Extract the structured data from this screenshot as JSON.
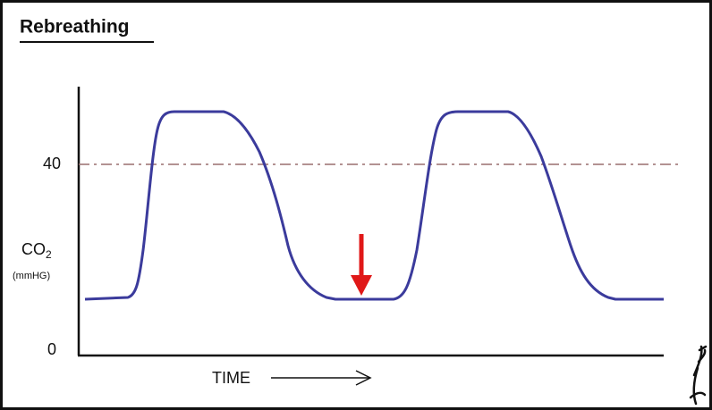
{
  "title": "Rebreathing",
  "y_axis": {
    "ticks": [
      "40",
      "0"
    ],
    "label": {
      "text": "CO",
      "subscript": "2"
    },
    "unit": "(mmHG)"
  },
  "x_axis": {
    "label": "TIME"
  }
}
